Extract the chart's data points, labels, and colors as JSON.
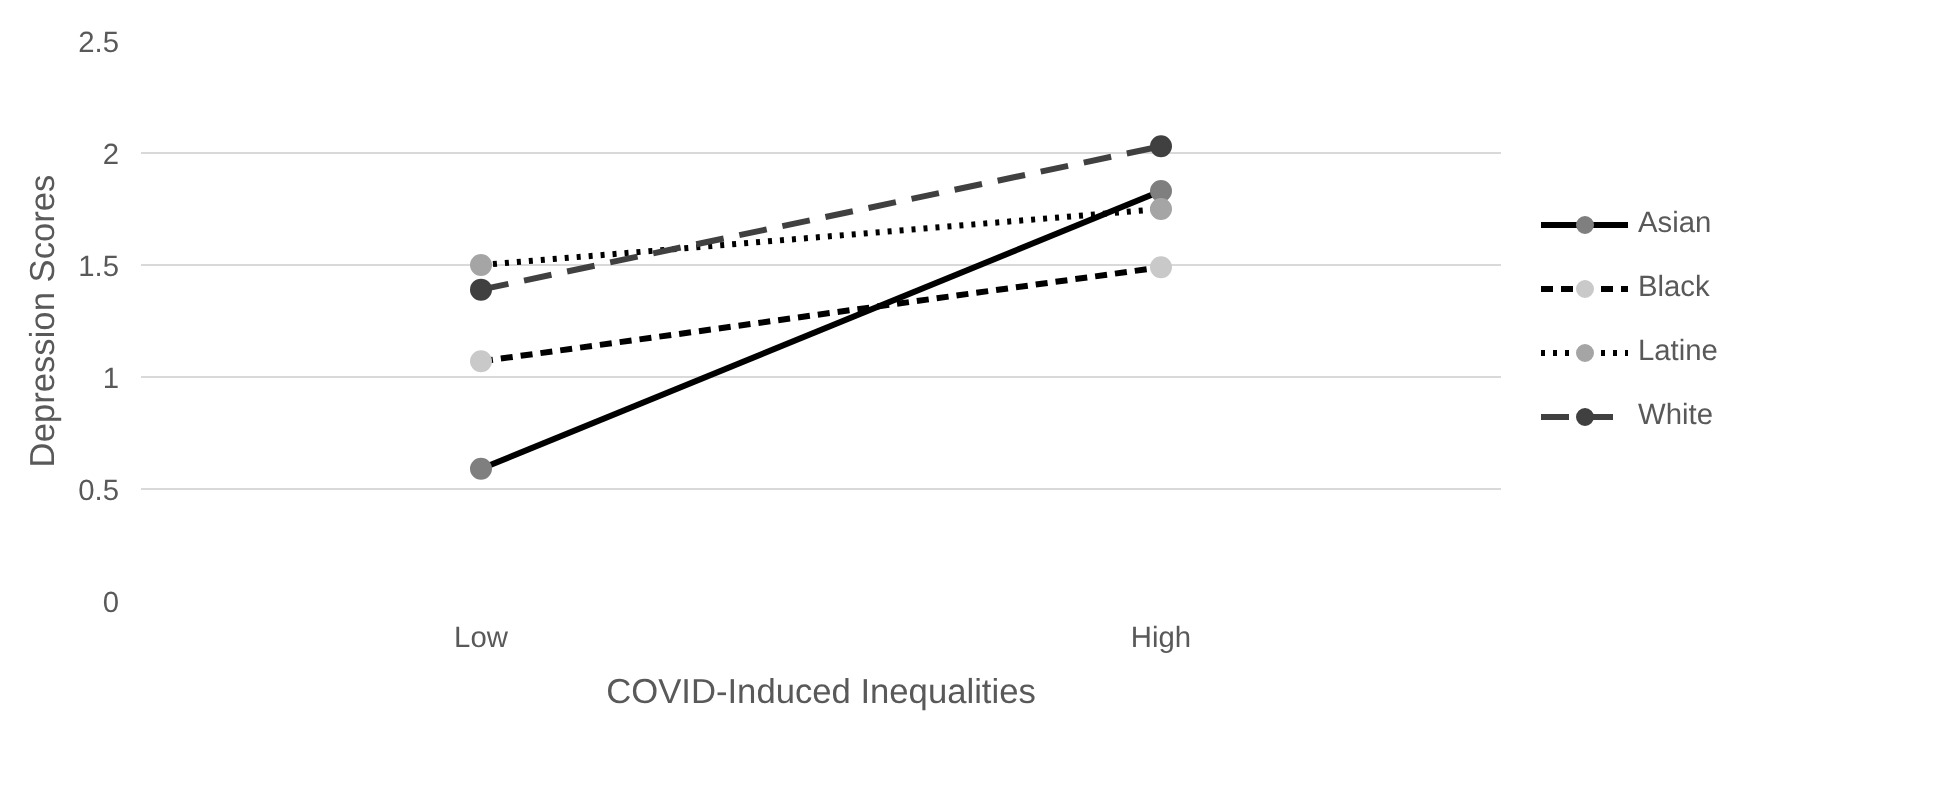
{
  "chart_data": {
    "type": "line",
    "xlabel": "COVID-Induced Inequalities",
    "ylabel": "Depression Scores",
    "categories": [
      "Low",
      "High"
    ],
    "series": [
      {
        "name": "Asian",
        "color": "#000000",
        "colors": [
          "#7f7f7f",
          "#7f7f7f"
        ],
        "line_style": "solid",
        "values": [
          0.59,
          1.83
        ]
      },
      {
        "name": "Black",
        "color": "#000000",
        "colors": [
          "#c9c9c9",
          "#c9c9c9"
        ],
        "line_style": "dashed",
        "values": [
          1.07,
          1.49
        ]
      },
      {
        "name": "Latine",
        "color": "#000000",
        "colors": [
          "#a5a5a5",
          "#a5a5a5"
        ],
        "line_style": "dotted",
        "values": [
          1.5,
          1.75
        ]
      },
      {
        "name": "White",
        "color": "#404040",
        "colors": [
          "#404040",
          "#404040"
        ],
        "line_style": "long_dashed",
        "values": [
          1.39,
          2.03
        ]
      }
    ],
    "ylim": [
      0,
      2.5
    ],
    "yticks": [
      0,
      0.5,
      1,
      1.5,
      2,
      2.5
    ],
    "grid": "y",
    "legend": "right",
    "marker": "circle"
  }
}
